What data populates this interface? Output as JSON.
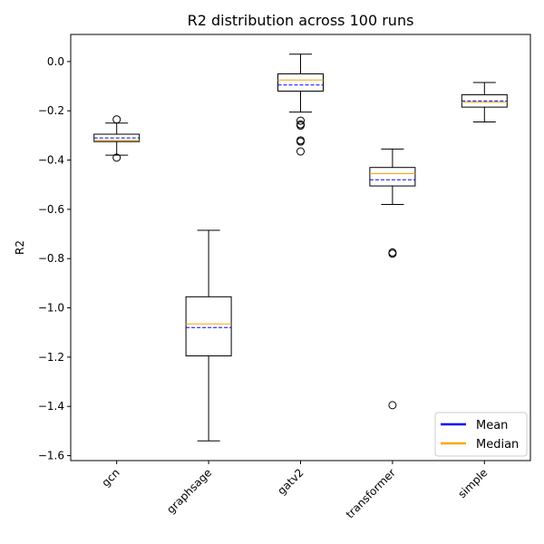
{
  "chart_data": {
    "type": "boxplot",
    "title": "R2 distribution across 100 runs",
    "xlabel": "",
    "ylabel": "R2",
    "ylim": [
      -1.62,
      0.11
    ],
    "yticks": [
      0.0,
      -0.2,
      -0.4,
      -0.6,
      -0.8,
      -1.0,
      -1.2,
      -1.4,
      -1.6
    ],
    "ytick_labels": [
      "0.0",
      "−0.2",
      "−0.4",
      "−0.6",
      "−0.8",
      "−1.0",
      "−1.2",
      "−1.4",
      "−1.6"
    ],
    "grid": false,
    "categories": [
      "gcn",
      "graphsage",
      "gatv2",
      "transformer",
      "simple"
    ],
    "boxes": [
      {
        "name": "gcn",
        "whisker_low": -0.38,
        "q1": -0.325,
        "median": -0.32,
        "mean": -0.31,
        "q3": -0.295,
        "whisker_high": -0.25,
        "outliers": [
          -0.235,
          -0.39
        ]
      },
      {
        "name": "graphsage",
        "whisker_low": -1.54,
        "q1": -1.195,
        "median": -1.065,
        "mean": -1.08,
        "q3": -0.955,
        "whisker_high": -0.685,
        "outliers": []
      },
      {
        "name": "gatv2",
        "whisker_low": -0.205,
        "q1": -0.12,
        "median": -0.075,
        "mean": -0.095,
        "q3": -0.05,
        "whisker_high": 0.03,
        "outliers": [
          -0.24,
          -0.255,
          -0.26,
          -0.32,
          -0.325,
          -0.365
        ]
      },
      {
        "name": "transformer",
        "whisker_low": -0.58,
        "q1": -0.505,
        "median": -0.455,
        "mean": -0.48,
        "q3": -0.43,
        "whisker_high": -0.355,
        "outliers": [
          -0.775,
          -0.78,
          -1.395
        ]
      },
      {
        "name": "simple",
        "whisker_low": -0.245,
        "q1": -0.185,
        "median": -0.165,
        "mean": -0.16,
        "q3": -0.135,
        "whisker_high": -0.085,
        "outliers": []
      }
    ],
    "legend": {
      "placement": "lower-right",
      "entries": [
        {
          "label": "Mean",
          "color": "#0000ff"
        },
        {
          "label": "Median",
          "color": "#ffa500"
        }
      ]
    },
    "colors": {
      "box": "#000000",
      "median": "#ffa500",
      "mean": "#0000ff"
    }
  }
}
